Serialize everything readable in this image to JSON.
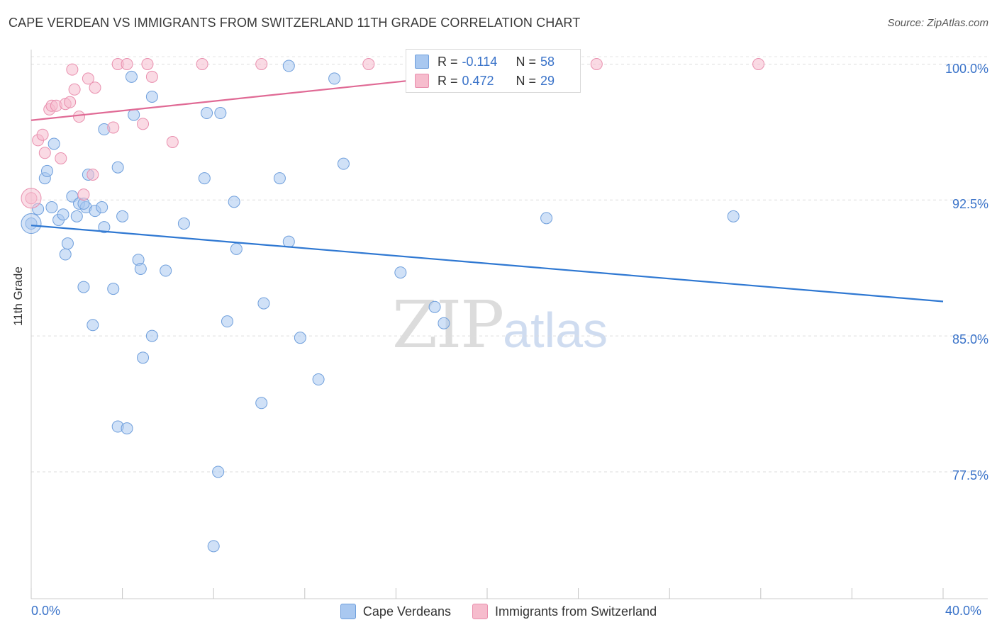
{
  "title": "CAPE VERDEAN VS IMMIGRANTS FROM SWITZERLAND 11TH GRADE CORRELATION CHART",
  "source": "Source: ZipAtlas.com",
  "watermark": {
    "zip": "ZIP",
    "atlas": "atlas"
  },
  "legend": {
    "r_label": "R =",
    "n_label": "N =",
    "series": [
      {
        "r": "-0.114",
        "n": "58",
        "color": "#a9c8f0"
      },
      {
        "r": "0.472",
        "n": "29",
        "color": "#f6bccd"
      }
    ]
  },
  "bottom_legend": [
    "Cape Verdeans",
    "Immigrants from Switzerland"
  ],
  "chart_data": {
    "type": "scatter",
    "title": "CAPE VERDEAN VS IMMIGRANTS FROM SWITZERLAND 11TH GRADE CORRELATION CHART",
    "ylabel": "11th Grade",
    "xlabel": "",
    "xlim": [
      0,
      40
    ],
    "ylim": [
      70.5,
      100.8
    ],
    "x_tick_labels": [
      "0.0%",
      "40.0%"
    ],
    "y_ticks": [
      77.5,
      85.0,
      92.5,
      100.0
    ],
    "y_tick_labels": [
      "77.5%",
      "85.0%",
      "92.5%",
      "100.0%"
    ],
    "grid": "horizontal dashed",
    "series": [
      {
        "name": "Cape Verdeans",
        "color": "#a9c8f0",
        "stroke": "#6f9fdc",
        "trend": {
          "color": "#2f78d2",
          "x": [
            0,
            40
          ],
          "y": [
            91.1,
            86.9
          ]
        },
        "points": [
          [
            0.0,
            91.2
          ],
          [
            0.3,
            92.0
          ],
          [
            0.6,
            93.7
          ],
          [
            0.7,
            94.1
          ],
          [
            0.9,
            92.1
          ],
          [
            1.0,
            95.6
          ],
          [
            1.2,
            91.4
          ],
          [
            1.4,
            91.7
          ],
          [
            1.5,
            89.5
          ],
          [
            1.6,
            90.1
          ],
          [
            1.8,
            92.7
          ],
          [
            2.0,
            91.6
          ],
          [
            2.1,
            92.3
          ],
          [
            2.3,
            87.7
          ],
          [
            2.4,
            92.1
          ],
          [
            2.5,
            93.9
          ],
          [
            2.7,
            85.6
          ],
          [
            2.8,
            91.9
          ],
          [
            3.1,
            92.1
          ],
          [
            3.2,
            91.0
          ],
          [
            3.2,
            96.4
          ],
          [
            3.6,
            87.6
          ],
          [
            3.8,
            94.3
          ],
          [
            3.8,
            80.0
          ],
          [
            4.0,
            91.6
          ],
          [
            4.2,
            79.9
          ],
          [
            4.4,
            99.3
          ],
          [
            4.5,
            97.2
          ],
          [
            4.7,
            89.2
          ],
          [
            4.8,
            88.7
          ],
          [
            4.9,
            83.8
          ],
          [
            5.3,
            98.2
          ],
          [
            5.3,
            85.0
          ],
          [
            5.9,
            88.6
          ],
          [
            6.7,
            91.2
          ],
          [
            7.6,
            93.7
          ],
          [
            7.7,
            97.3
          ],
          [
            8.2,
            77.5
          ],
          [
            8.3,
            97.3
          ],
          [
            8.6,
            85.8
          ],
          [
            8.9,
            92.4
          ],
          [
            9.0,
            89.8
          ],
          [
            10.1,
            81.3
          ],
          [
            10.2,
            86.8
          ],
          [
            10.9,
            93.7
          ],
          [
            11.3,
            90.2
          ],
          [
            11.3,
            99.9
          ],
          [
            11.8,
            84.9
          ],
          [
            12.6,
            82.6
          ],
          [
            13.3,
            99.2
          ],
          [
            13.7,
            94.5
          ],
          [
            16.2,
            88.5
          ],
          [
            17.7,
            86.6
          ],
          [
            18.1,
            85.7
          ],
          [
            22.6,
            91.5
          ],
          [
            30.8,
            91.6
          ],
          [
            8.0,
            73.4
          ],
          [
            2.3,
            92.3
          ]
        ]
      },
      {
        "name": "Immigrants from Switzerland",
        "color": "#f6bccd",
        "stroke": "#e98fae",
        "trend": {
          "color": "#e06a95",
          "x": [
            0,
            23.5
          ],
          "y": [
            96.9,
            100.0
          ]
        },
        "points": [
          [
            0.0,
            92.6
          ],
          [
            0.3,
            95.8
          ],
          [
            0.5,
            96.1
          ],
          [
            0.6,
            95.1
          ],
          [
            0.8,
            97.5
          ],
          [
            0.9,
            97.7
          ],
          [
            1.1,
            97.7
          ],
          [
            1.3,
            94.8
          ],
          [
            1.5,
            97.8
          ],
          [
            1.7,
            97.9
          ],
          [
            1.8,
            99.7
          ],
          [
            1.9,
            98.6
          ],
          [
            2.1,
            97.1
          ],
          [
            2.5,
            99.2
          ],
          [
            2.7,
            93.9
          ],
          [
            2.8,
            98.7
          ],
          [
            3.6,
            96.5
          ],
          [
            3.8,
            100.0
          ],
          [
            4.2,
            100.0
          ],
          [
            4.9,
            96.7
          ],
          [
            5.1,
            100.0
          ],
          [
            5.3,
            99.3
          ],
          [
            6.2,
            95.7
          ],
          [
            7.5,
            100.0
          ],
          [
            10.1,
            100.0
          ],
          [
            14.8,
            100.0
          ],
          [
            24.8,
            100.0
          ],
          [
            31.9,
            100.0
          ],
          [
            2.3,
            92.8
          ]
        ]
      }
    ]
  }
}
